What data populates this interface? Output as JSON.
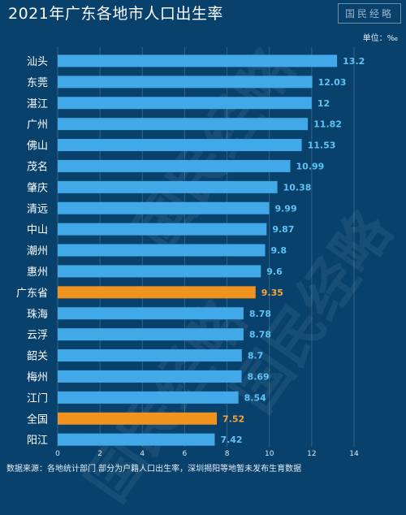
{
  "header": {
    "title": "2021年广东各地市人口出生率",
    "brand": "国民经略",
    "unit_label": "单位：‰"
  },
  "footer": {
    "source": "数据来源：各地统计部门 部分为户籍人口出生率，深圳揭阳等地暂未发布生育数据"
  },
  "watermark": "国民经略",
  "colors": {
    "background": "#07416c",
    "bar": "#41a9e8",
    "highlight": "#f0931f",
    "value_label": "#5fc3f5",
    "highlight_label": "#f7a53a"
  },
  "chart_data": {
    "type": "bar",
    "orientation": "horizontal",
    "categories": [
      "汕头",
      "东莞",
      "湛江",
      "广州",
      "佛山",
      "茂名",
      "肇庆",
      "清远",
      "中山",
      "潮州",
      "惠州",
      "广东省",
      "珠海",
      "云浮",
      "韶关",
      "梅州",
      "江门",
      "全国",
      "阳江"
    ],
    "values": [
      13.2,
      12.03,
      12,
      11.82,
      11.53,
      10.99,
      10.38,
      9.99,
      9.87,
      9.8,
      9.6,
      9.35,
      8.78,
      8.78,
      8.7,
      8.69,
      8.54,
      7.52,
      7.42
    ],
    "value_labels": [
      "13.2",
      "12.03",
      "12",
      "11.82",
      "11.53",
      "10.99",
      "10.38",
      "9.99",
      "9.87",
      "9.8",
      "9.6",
      "9.35",
      "8.78",
      "8.78",
      "8.7",
      "8.69",
      "8.54",
      "7.52",
      "7.42"
    ],
    "highlighted": [
      "广东省",
      "全国"
    ],
    "xlim": [
      0,
      14
    ],
    "xticks": [
      "0",
      "2",
      "4",
      "6",
      "8",
      "10",
      "12",
      "14"
    ],
    "grid": true,
    "legend": "none",
    "title": "2021年广东各地市人口出生率"
  }
}
